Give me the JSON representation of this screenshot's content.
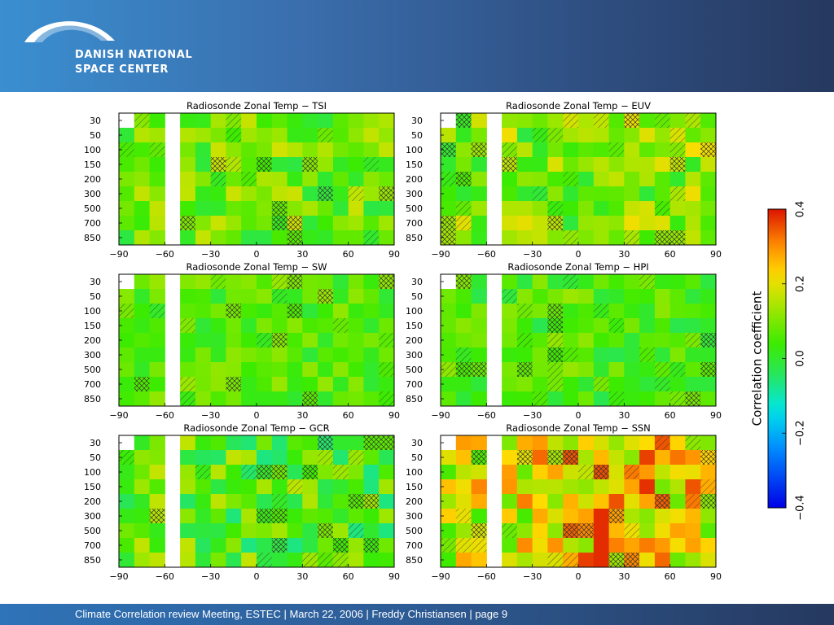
{
  "header": {
    "org_line1": "DANISH NATIONAL",
    "org_line2": "SPACE CENTER"
  },
  "footer": {
    "text": "Climate Correlation review Meeting, ESTEC | March 22, 2006 | Freddy Christiansen | page 9"
  },
  "colors": {
    "header_start": "#3a8fd0",
    "header_end": "#26395f"
  },
  "chart_data": [
    {
      "type": "heatmap",
      "title": "Radiosonde Zonal Temp − TSI",
      "x": [
        -90,
        -60,
        -30,
        0,
        30,
        60,
        90
      ],
      "y": [
        30,
        50,
        100,
        150,
        200,
        300,
        500,
        700,
        850
      ],
      "xlim": [
        -90,
        90
      ],
      "ylabel": "",
      "colorbar": {
        "label": "Correlation coefficient",
        "range": [
          -0.4,
          0.4
        ]
      }
    },
    {
      "type": "heatmap",
      "title": "Radiosonde Zonal Temp − EUV",
      "x": [
        -90,
        -60,
        -30,
        0,
        30,
        60,
        90
      ],
      "y": [
        30,
        50,
        100,
        150,
        200,
        300,
        500,
        700,
        850
      ],
      "xlim": [
        -90,
        90
      ]
    },
    {
      "type": "heatmap",
      "title": "Radiosonde Zonal Temp − SW",
      "x": [
        -90,
        -60,
        -30,
        0,
        30,
        60,
        90
      ],
      "y": [
        30,
        50,
        100,
        150,
        200,
        300,
        500,
        700,
        850
      ],
      "xlim": [
        -90,
        90
      ]
    },
    {
      "type": "heatmap",
      "title": "Radiosonde Zonal Temp − HPI",
      "x": [
        -90,
        -60,
        -30,
        0,
        30,
        60,
        90
      ],
      "y": [
        30,
        50,
        100,
        150,
        200,
        300,
        500,
        700,
        850
      ],
      "xlim": [
        -90,
        90
      ]
    },
    {
      "type": "heatmap",
      "title": "Radiosonde Zonal Temp − GCR",
      "x": [
        -90,
        -60,
        -30,
        0,
        30,
        60,
        90
      ],
      "y": [
        30,
        50,
        100,
        150,
        200,
        300,
        500,
        700,
        850
      ],
      "xlim": [
        -90,
        90
      ]
    },
    {
      "type": "heatmap",
      "title": "Radiosonde Zonal Temp − SSN",
      "x": [
        -90,
        -60,
        -30,
        0,
        30,
        60,
        90
      ],
      "y": [
        30,
        50,
        100,
        150,
        200,
        300,
        500,
        700,
        850
      ],
      "xlim": [
        -90,
        90
      ]
    }
  ],
  "colorbar": {
    "label": "Correlation coefficient",
    "ticks": [
      "−0.4",
      "−0.2",
      "0.0",
      "0.2",
      "0.4"
    ],
    "tick_values": [
      -0.4,
      -0.2,
      0.0,
      0.2,
      0.4
    ]
  },
  "axes": {
    "x_ticks": [
      "−90",
      "−60",
      "−30",
      "0",
      "30",
      "60",
      "90"
    ],
    "y_ticks": [
      "30",
      "50",
      "100",
      "150",
      "200",
      "300",
      "500",
      "700",
      "850"
    ]
  }
}
